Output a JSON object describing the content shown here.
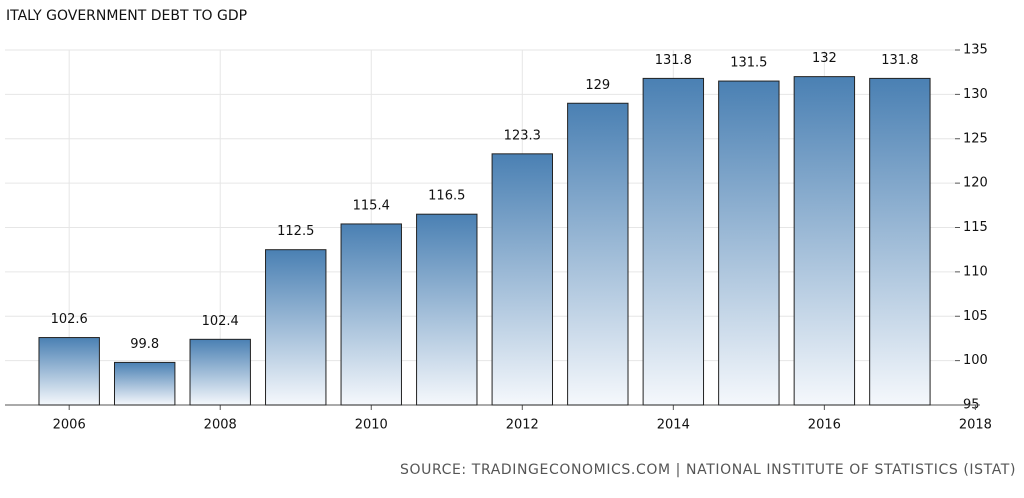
{
  "chart_data": {
    "type": "bar",
    "title": "ITALY GOVERNMENT DEBT TO GDP",
    "source": "SOURCE: TRADINGECONOMICS.COM | NATIONAL INSTITUTE OF STATISTICS (ISTAT)",
    "x": [
      2006,
      2007,
      2008,
      2009,
      2010,
      2011,
      2012,
      2013,
      2014,
      2015,
      2016,
      2017
    ],
    "values": [
      102.6,
      99.8,
      102.4,
      112.5,
      115.4,
      116.5,
      123.3,
      129,
      131.8,
      131.5,
      132,
      131.8
    ],
    "color": "#4a80b3",
    "xlim": [
      2005.15,
      2017.73
    ],
    "xticks": [
      2006,
      2008,
      2010,
      2012,
      2014,
      2016,
      2018
    ],
    "ylim": [
      95,
      135
    ],
    "yticks": [
      95,
      100,
      105,
      110,
      115,
      120,
      125,
      130,
      135
    ],
    "grid": true
  }
}
